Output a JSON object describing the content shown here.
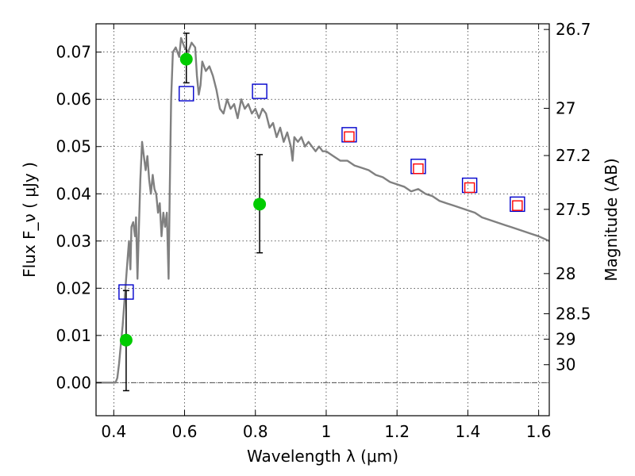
{
  "chart_data": {
    "type": "scatter",
    "xlabel": "Wavelength  λ (μm)",
    "ylabel": "Flux  F_ν  ( μJy )",
    "ylabel_right": "Magnitude (AB)",
    "xlim": [
      0.35,
      1.63
    ],
    "ylim": [
      -0.007,
      0.076
    ],
    "x_ticks": [
      {
        "value": 0.4,
        "label": "0.4"
      },
      {
        "value": 0.6,
        "label": "0.6"
      },
      {
        "value": 0.8,
        "label": "0.8"
      },
      {
        "value": 1.0,
        "label": "1"
      },
      {
        "value": 1.2,
        "label": "1.2"
      },
      {
        "value": 1.4,
        "label": "1.4"
      },
      {
        "value": 1.6,
        "label": "1.6"
      }
    ],
    "y_ticks": [
      {
        "value": 0.0,
        "label": "0.00"
      },
      {
        "value": 0.01,
        "label": "0.01"
      },
      {
        "value": 0.02,
        "label": "0.02"
      },
      {
        "value": 0.03,
        "label": "0.03"
      },
      {
        "value": 0.04,
        "label": "0.04"
      },
      {
        "value": 0.05,
        "label": "0.05"
      },
      {
        "value": 0.06,
        "label": "0.06"
      },
      {
        "value": 0.07,
        "label": "0.07"
      }
    ],
    "right_ticks": [
      {
        "flux": 0.0748,
        "label": "26.7"
      },
      {
        "flux": 0.0581,
        "label": "27"
      },
      {
        "flux": 0.0481,
        "label": "27.2"
      },
      {
        "flux": 0.0367,
        "label": "27.5"
      },
      {
        "flux": 0.0231,
        "label": "28"
      },
      {
        "flux": 0.0146,
        "label": "28.5"
      },
      {
        "flux": 0.0092,
        "label": "29"
      },
      {
        "flux": 0.0038,
        "label": "30"
      }
    ],
    "grid": true,
    "horizontal_reference_line": 0.0,
    "series": [
      {
        "type": "line",
        "color": "#808080",
        "points": [
          [
            0.35,
            0.0
          ],
          [
            0.405,
            0.0
          ],
          [
            0.41,
            0.001
          ],
          [
            0.415,
            0.004
          ],
          [
            0.42,
            0.008
          ],
          [
            0.425,
            0.012
          ],
          [
            0.43,
            0.017
          ],
          [
            0.435,
            0.022
          ],
          [
            0.44,
            0.027
          ],
          [
            0.443,
            0.03
          ],
          [
            0.447,
            0.024
          ],
          [
            0.45,
            0.033
          ],
          [
            0.455,
            0.034
          ],
          [
            0.46,
            0.031
          ],
          [
            0.463,
            0.035
          ],
          [
            0.467,
            0.022
          ],
          [
            0.47,
            0.03
          ],
          [
            0.475,
            0.043
          ],
          [
            0.48,
            0.051
          ],
          [
            0.485,
            0.048
          ],
          [
            0.49,
            0.045
          ],
          [
            0.495,
            0.048
          ],
          [
            0.5,
            0.043
          ],
          [
            0.505,
            0.04
          ],
          [
            0.51,
            0.044
          ],
          [
            0.515,
            0.041
          ],
          [
            0.52,
            0.04
          ],
          [
            0.525,
            0.036
          ],
          [
            0.53,
            0.038
          ],
          [
            0.535,
            0.031
          ],
          [
            0.54,
            0.036
          ],
          [
            0.545,
            0.033
          ],
          [
            0.55,
            0.036
          ],
          [
            0.555,
            0.022
          ],
          [
            0.558,
            0.04
          ],
          [
            0.562,
            0.06
          ],
          [
            0.567,
            0.07
          ],
          [
            0.575,
            0.071
          ],
          [
            0.585,
            0.069
          ],
          [
            0.59,
            0.073
          ],
          [
            0.6,
            0.071
          ],
          [
            0.61,
            0.07
          ],
          [
            0.62,
            0.072
          ],
          [
            0.63,
            0.071
          ],
          [
            0.635,
            0.065
          ],
          [
            0.64,
            0.061
          ],
          [
            0.645,
            0.063
          ],
          [
            0.65,
            0.068
          ],
          [
            0.66,
            0.066
          ],
          [
            0.67,
            0.067
          ],
          [
            0.68,
            0.065
          ],
          [
            0.69,
            0.062
          ],
          [
            0.7,
            0.058
          ],
          [
            0.71,
            0.057
          ],
          [
            0.72,
            0.06
          ],
          [
            0.73,
            0.058
          ],
          [
            0.74,
            0.059
          ],
          [
            0.75,
            0.056
          ],
          [
            0.76,
            0.06
          ],
          [
            0.77,
            0.058
          ],
          [
            0.78,
            0.059
          ],
          [
            0.79,
            0.057
          ],
          [
            0.8,
            0.058
          ],
          [
            0.81,
            0.056
          ],
          [
            0.82,
            0.058
          ],
          [
            0.83,
            0.057
          ],
          [
            0.84,
            0.054
          ],
          [
            0.85,
            0.055
          ],
          [
            0.86,
            0.052
          ],
          [
            0.87,
            0.054
          ],
          [
            0.88,
            0.051
          ],
          [
            0.89,
            0.053
          ],
          [
            0.9,
            0.05
          ],
          [
            0.905,
            0.047
          ],
          [
            0.91,
            0.052
          ],
          [
            0.92,
            0.051
          ],
          [
            0.93,
            0.052
          ],
          [
            0.94,
            0.05
          ],
          [
            0.95,
            0.051
          ],
          [
            0.96,
            0.05
          ],
          [
            0.97,
            0.049
          ],
          [
            0.98,
            0.05
          ],
          [
            0.99,
            0.049
          ],
          [
            1.0,
            0.049
          ],
          [
            1.02,
            0.048
          ],
          [
            1.04,
            0.047
          ],
          [
            1.06,
            0.047
          ],
          [
            1.08,
            0.046
          ],
          [
            1.1,
            0.0455
          ],
          [
            1.12,
            0.045
          ],
          [
            1.14,
            0.044
          ],
          [
            1.16,
            0.0435
          ],
          [
            1.18,
            0.0425
          ],
          [
            1.2,
            0.042
          ],
          [
            1.22,
            0.0415
          ],
          [
            1.24,
            0.0405
          ],
          [
            1.26,
            0.041
          ],
          [
            1.28,
            0.04
          ],
          [
            1.3,
            0.0395
          ],
          [
            1.32,
            0.0385
          ],
          [
            1.34,
            0.038
          ],
          [
            1.36,
            0.0375
          ],
          [
            1.38,
            0.037
          ],
          [
            1.4,
            0.0365
          ],
          [
            1.42,
            0.036
          ],
          [
            1.44,
            0.035
          ],
          [
            1.46,
            0.0345
          ],
          [
            1.48,
            0.034
          ],
          [
            1.5,
            0.0335
          ],
          [
            1.52,
            0.033
          ],
          [
            1.54,
            0.0325
          ],
          [
            1.56,
            0.032
          ],
          [
            1.58,
            0.0315
          ],
          [
            1.6,
            0.031
          ],
          [
            1.63,
            0.03
          ]
        ]
      },
      {
        "type": "errorbar_points",
        "marker": "circle",
        "color": "#00cc00",
        "points": [
          {
            "x": 0.435,
            "y": 0.009,
            "err_low": 0.0107,
            "err_high": 0.0105
          },
          {
            "x": 0.605,
            "y": 0.0685,
            "err_low": 0.005,
            "err_high": 0.0055
          },
          {
            "x": 0.812,
            "y": 0.0378,
            "err_low": 0.0103,
            "err_high": 0.0105
          }
        ]
      },
      {
        "type": "scatter",
        "marker": "open-square",
        "color": "#0000cc",
        "points": [
          {
            "x": 0.435,
            "y": 0.0192
          },
          {
            "x": 0.605,
            "y": 0.0612
          },
          {
            "x": 0.812,
            "y": 0.0617
          },
          {
            "x": 1.065,
            "y": 0.0525
          },
          {
            "x": 1.26,
            "y": 0.0458
          },
          {
            "x": 1.405,
            "y": 0.0418
          },
          {
            "x": 1.54,
            "y": 0.0378
          }
        ]
      },
      {
        "type": "scatter",
        "marker": "open-square-small",
        "color": "#ff0000",
        "points": [
          {
            "x": 1.065,
            "y": 0.0521
          },
          {
            "x": 1.26,
            "y": 0.0453
          },
          {
            "x": 1.405,
            "y": 0.0413
          },
          {
            "x": 1.54,
            "y": 0.0375
          }
        ]
      }
    ]
  }
}
